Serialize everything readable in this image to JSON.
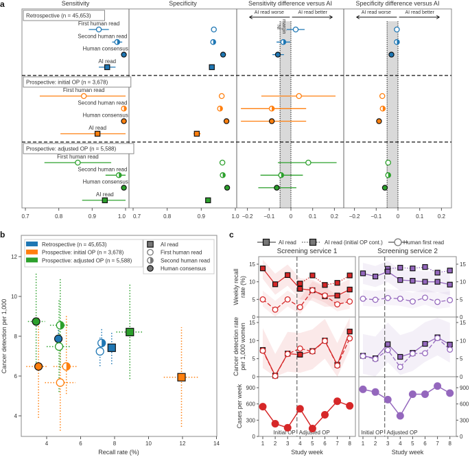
{
  "figure_labels": {
    "a": "a",
    "b": "b",
    "c": "c"
  },
  "colors": {
    "retrospective": "#1f77b4",
    "initial_op": "#ff7f0e",
    "adjusted_op": "#2ca02c",
    "service1": "#d62728",
    "service2": "#9467bd",
    "ni_band": "#d9d9d9"
  },
  "chart_data": [
    {
      "panel": "a",
      "type": "scatter",
      "columns": [
        {
          "key": "sensitivity",
          "title": "Sensitivity",
          "xlim": [
            0.7,
            1.0
          ],
          "ticks": [
            "0.7",
            "0.8",
            "0.9",
            "1.0"
          ]
        },
        {
          "key": "specificity",
          "title": "Specificity",
          "xlim": [
            0.7,
            1.0
          ],
          "ticks": [
            "0.7",
            "0.8",
            "0.9",
            "1.0"
          ]
        },
        {
          "key": "sens_diff",
          "title": "Sensitivity difference versus AI",
          "xlim": [
            -0.2,
            0.2
          ],
          "ticks": [
            "−0.2",
            "−0.1",
            "0",
            "0.1",
            "0.2"
          ]
        },
        {
          "key": "spec_diff",
          "title": "Specificity difference versus AI",
          "xlim": [
            -0.2,
            0.2
          ],
          "ticks": [
            "−0.2",
            "−0.1",
            "0",
            "0.1",
            "0.2"
          ]
        }
      ],
      "annotations": {
        "worse": "AI read worse",
        "better": "AI read better",
        "ni_margin_line1": "NI",
        "ni_margin_line2": "margin",
        "ni_margin": -0.05
      },
      "groups": [
        {
          "label": "Retrospective (n = 45,653)",
          "color_key": "retrospective",
          "rows": [
            {
              "label": "First human read",
              "marker": "open-circle",
              "sensitivity": [
                0.92,
                0.89,
                0.95
              ],
              "specificity": [
                0.937
              ],
              "sens_diff": [
                0.022,
                -0.02,
                0.063
              ],
              "spec_diff": [
                -0.005
              ]
            },
            {
              "label": "Second human read",
              "marker": "half-circle",
              "sensitivity": [
                0.975,
                0.96,
                0.99
              ],
              "specificity": [
                0.935
              ],
              "sens_diff": [
                -0.035,
                -0.066,
                -0.003
              ],
              "spec_diff": [
                -0.005
              ]
            },
            {
              "label": "Human consensus",
              "marker": "filled-circle",
              "sensitivity": [
                0.995
              ],
              "specificity": [
                0.964
              ],
              "sens_diff": [
                -0.06,
                -0.085,
                -0.032
              ],
              "spec_diff": [
                -0.03
              ]
            },
            {
              "label": "AI read",
              "marker": "square",
              "sensitivity": [
                0.945,
                0.92,
                0.97
              ],
              "specificity": [
                0.931
              ]
            }
          ]
        },
        {
          "label": "Prospective: initial OP (n = 3,678)",
          "color_key": "initial_op",
          "rows": [
            {
              "label": "First human read",
              "marker": "open-circle",
              "sensitivity": [
                0.875,
                0.743,
                1.0
              ],
              "specificity": [
                0.96
              ],
              "sens_diff": [
                0.037,
                -0.136,
                0.205
              ],
              "spec_diff": [
                -0.072
              ]
            },
            {
              "label": "Second human read",
              "marker": "half-circle",
              "sensitivity": [
                0.995
              ],
              "specificity": [
                0.955
              ],
              "sens_diff": [
                -0.088,
                -0.23,
                0.07
              ],
              "spec_diff": [
                -0.07
              ]
            },
            {
              "label": "Human consensus",
              "marker": "filled-circle",
              "sensitivity": [
                0.995
              ],
              "specificity": [
                0.974
              ],
              "sens_diff": [
                -0.088,
                -0.23,
                0.07
              ],
              "spec_diff": [
                -0.087
              ]
            },
            {
              "label": "AI read",
              "marker": "square",
              "sensitivity": [
                0.916,
                0.805,
                1.0
              ],
              "specificity": [
                0.887,
                0.877,
                0.898
              ]
            }
          ]
        },
        {
          "label": "Prospective: adjusted OP (n = 5,588)",
          "color_key": "adjusted_op",
          "rows": [
            {
              "label": "First human read",
              "marker": "open-circle",
              "sensitivity": [
                0.857,
                0.757,
                0.957
              ],
              "specificity": [
                0.962
              ],
              "sens_diff": [
                0.08,
                -0.06,
                0.21
              ],
              "spec_diff": [
                -0.045
              ]
            },
            {
              "label": "Second human read",
              "marker": "half-circle",
              "sensitivity": [
                0.98,
                0.94,
                1.0
              ],
              "specificity": [
                0.963
              ],
              "sens_diff": [
                -0.045,
                -0.14,
                0.055
              ],
              "spec_diff": [
                -0.045
              ]
            },
            {
              "label": "Human consensus",
              "marker": "filled-circle",
              "sensitivity": [
                0.995
              ],
              "specificity": [
                0.976
              ],
              "sens_diff": [
                -0.065,
                -0.15,
                0.025
              ],
              "spec_diff": [
                -0.06
              ]
            },
            {
              "label": "AI read",
              "marker": "square",
              "sensitivity": [
                0.938,
                0.87,
                1.0
              ],
              "specificity": [
                0.92
              ]
            }
          ]
        }
      ]
    },
    {
      "panel": "b",
      "type": "scatter",
      "xlabel": "Recall rate (%)",
      "ylabel": "Cancer detection per 1,000",
      "xlim": [
        2.5,
        14
      ],
      "ylim": [
        2.8,
        13
      ],
      "xticks": [
        "4",
        "6",
        "8",
        "10",
        "12",
        "14"
      ],
      "yticks": [
        "4",
        "6",
        "8",
        "10",
        "12"
      ],
      "legend_cohorts": [
        {
          "label": "Retrospective (n = 45,653)",
          "color_key": "retrospective"
        },
        {
          "label": "Prospective: initial OP (n = 3,678)",
          "color_key": "initial_op"
        },
        {
          "label": "Prospective: adjusted OP (n = 5,588)",
          "color_key": "adjusted_op"
        }
      ],
      "legend_markers": [
        {
          "label": "AI read",
          "marker": "square"
        },
        {
          "label": "First human read",
          "marker": "open-circle"
        },
        {
          "label": "Second human read",
          "marker": "half-circle"
        },
        {
          "label": "Human consensus",
          "marker": "filled-circle"
        }
      ],
      "points": [
        {
          "cohort": "retrospective",
          "marker": "square",
          "x": 7.83,
          "y": 7.42,
          "x_ci": [
            7.6,
            8.05
          ],
          "y_ci": [
            6.6,
            8.2
          ]
        },
        {
          "cohort": "retrospective",
          "marker": "open-circle",
          "x": 7.14,
          "y": 7.24,
          "x_ci": [
            6.95,
            7.35
          ],
          "y_ci": [
            6.5,
            8.0
          ]
        },
        {
          "cohort": "retrospective",
          "marker": "half-circle",
          "x": 7.24,
          "y": 7.66,
          "x_ci": [
            7.05,
            7.45
          ],
          "y_ci": [
            7.2,
            8.4
          ]
        },
        {
          "cohort": "retrospective",
          "marker": "filled-circle",
          "x": 4.69,
          "y": 7.87,
          "x_ci": [
            4.55,
            4.85
          ],
          "y_ci": [
            7.3,
            8.5
          ]
        },
        {
          "cohort": "initial_op",
          "marker": "square",
          "x": 11.94,
          "y": 5.94,
          "x_ci": [
            10.9,
            12.9
          ],
          "y_ci": [
            3.45,
            8.45
          ]
        },
        {
          "cohort": "initial_op",
          "marker": "open-circle",
          "x": 4.8,
          "y": 5.67,
          "x_ci": [
            3.9,
            5.7
          ],
          "y_ci": [
            3.25,
            8.1
          ]
        },
        {
          "cohort": "initial_op",
          "marker": "half-circle",
          "x": 5.16,
          "y": 6.48,
          "x_ci": [
            4.4,
            5.8
          ],
          "y_ci": [
            5.1,
            9.05
          ]
        },
        {
          "cohort": "initial_op",
          "marker": "filled-circle",
          "x": 3.52,
          "y": 6.48,
          "x_ci": [
            2.8,
            4.0
          ],
          "y_ci": [
            3.9,
            9.0
          ]
        },
        {
          "cohort": "adjusted_op",
          "marker": "square",
          "x": 8.9,
          "y": 8.21,
          "x_ci": [
            8.1,
            9.7
          ],
          "y_ci": [
            5.85,
            10.6
          ]
        },
        {
          "cohort": "adjusted_op",
          "marker": "open-circle",
          "x": 4.73,
          "y": 7.48,
          "x_ci": [
            4.0,
            5.4
          ],
          "y_ci": [
            5.2,
            9.8
          ]
        },
        {
          "cohort": "adjusted_op",
          "marker": "half-circle",
          "x": 4.8,
          "y": 8.55,
          "x_ci": [
            4.2,
            5.3
          ],
          "y_ci": [
            6.4,
            10.9
          ]
        },
        {
          "cohort": "adjusted_op",
          "marker": "filled-circle",
          "x": 3.38,
          "y": 8.74,
          "x_ci": [
            2.9,
            3.9
          ],
          "y_ci": [
            6.4,
            11.2
          ]
        }
      ]
    },
    {
      "panel": "c",
      "type": "line",
      "legend": [
        "AI read",
        "AI read (initial OP cont.)",
        "Human first read"
      ],
      "xlabel": "Study week",
      "weeks": [
        1,
        2,
        3,
        4,
        5,
        6,
        7,
        8
      ],
      "xticks": [
        "1",
        "2",
        "3",
        "4",
        "5",
        "6",
        "7",
        "8"
      ],
      "rows": [
        {
          "key": "recall",
          "ylabel_line1": "Weekly recall",
          "ylabel_line2": "rate (%)",
          "ylim": [
            0,
            16.5
          ],
          "yticks": [
            "0",
            "5",
            "10",
            "15"
          ]
        },
        {
          "key": "cdr",
          "ylabel_line1": "Cancer detection rate",
          "ylabel_line2": "per 1,000 women",
          "ylim": [
            0,
            16.5
          ],
          "yticks": [
            "0",
            "5",
            "10",
            "15"
          ]
        },
        {
          "key": "cases",
          "ylabel_line1": "Cases per week",
          "ylabel_line2": "",
          "ylim": [
            0,
            1100
          ],
          "yticks": [
            "0",
            "300",
            "600",
            "900"
          ]
        }
      ],
      "op_labels": {
        "initial": "Initial OP",
        "adjusted": "Adjusted OP"
      },
      "services": [
        {
          "title": "Screening service 1",
          "color_key": "service1",
          "op_change_week": 3.75,
          "recall_ai": [
            13.8,
            9.3,
            11.9,
            8.0,
            7.6,
            5.9,
            6.1,
            7.8
          ],
          "recall_ai_initial_cont": [
            null,
            null,
            null,
            9.5,
            11.8,
            9.1,
            9.7,
            11.8
          ],
          "recall_human": [
            5.0,
            2.1,
            5.0,
            2.8,
            7.6,
            6.1,
            3.6,
            4.4
          ],
          "cdr_ai": [
            7.4,
            0.3,
            6.4,
            6.1,
            7.1,
            10.0,
            3.3,
            12.5
          ],
          "cdr_human": [
            7.2,
            0.2,
            6.3,
            7.8,
            7.0,
            9.9,
            3.1,
            10.6
          ],
          "cases": [
            550,
            235,
            160,
            510,
            145,
            400,
            650,
            565
          ]
        },
        {
          "title": "Screening service 2",
          "color_key": "service2",
          "op_change_week": 2.75,
          "recall_ai": [
            12.4,
            11.5,
            12.9,
            10.5,
            10.3,
            10.0,
            10.0,
            9.2
          ],
          "recall_ai_initial_cont": [
            null,
            null,
            13.7,
            14.0,
            13.8,
            14.2,
            12.6,
            13.2
          ],
          "recall_human": [
            5.2,
            4.9,
            5.4,
            5.2,
            4.4,
            5.5,
            4.3,
            4.8
          ],
          "cdr_ai": [
            5.8,
            5.1,
            9.0,
            5.5,
            6.6,
            9.1,
            10.9,
            8.9
          ],
          "cdr_human": [
            5.7,
            4.9,
            7.4,
            2.7,
            6.4,
            6.5,
            10.7,
            7.5
          ],
          "cases": [
            870,
            820,
            680,
            380,
            780,
            780,
            930,
            800
          ]
        }
      ]
    }
  ]
}
